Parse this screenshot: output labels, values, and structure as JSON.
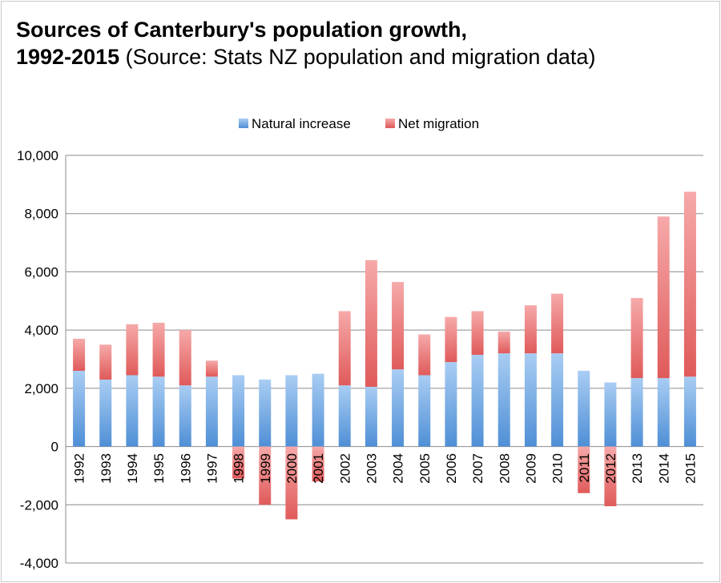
{
  "title": {
    "bold_line1": "Sources of Canterbury's population growth,",
    "bold_line2": "1992-2015",
    "rest": " (Source: Stats NZ population and migration data)"
  },
  "chart_data": {
    "type": "bar",
    "stacked": true,
    "title": "Sources of Canterbury's population growth, 1992-2015 (Source: Stats NZ population and migration data)",
    "legend_position": "top",
    "grid": true,
    "ylim": [
      -4000,
      10000
    ],
    "yticks": [
      -4000,
      -2000,
      0,
      2000,
      4000,
      6000,
      8000,
      10000
    ],
    "ytick_labels": [
      "-4,000",
      "-2,000",
      "0",
      "2,000",
      "4,000",
      "6,000",
      "8,000",
      "10,000"
    ],
    "categories": [
      "1992",
      "1993",
      "1994",
      "1995",
      "1996",
      "1997",
      "1998",
      "1999",
      "2000",
      "2001",
      "2002",
      "2003",
      "2004",
      "2005",
      "2006",
      "2007",
      "2008",
      "2009",
      "2010",
      "2011",
      "2012",
      "2013",
      "2014",
      "2015"
    ],
    "series": [
      {
        "name": "Natural increase",
        "color": "#5b9bd5",
        "values": [
          2600,
          2300,
          2450,
          2400,
          2100,
          2400,
          2450,
          2300,
          2450,
          2500,
          2100,
          2050,
          2650,
          2450,
          2900,
          3150,
          3200,
          3200,
          3200,
          2600,
          2200,
          2350,
          2350,
          2400
        ]
      },
      {
        "name": "Net migration",
        "color": "#e06666",
        "values": [
          1100,
          1200,
          1750,
          1850,
          1900,
          550,
          -1100,
          -2000,
          -2500,
          -1200,
          2550,
          4350,
          3000,
          1400,
          1550,
          1500,
          750,
          1650,
          2050,
          -1600,
          -2050,
          2750,
          5550,
          6350
        ]
      }
    ]
  }
}
